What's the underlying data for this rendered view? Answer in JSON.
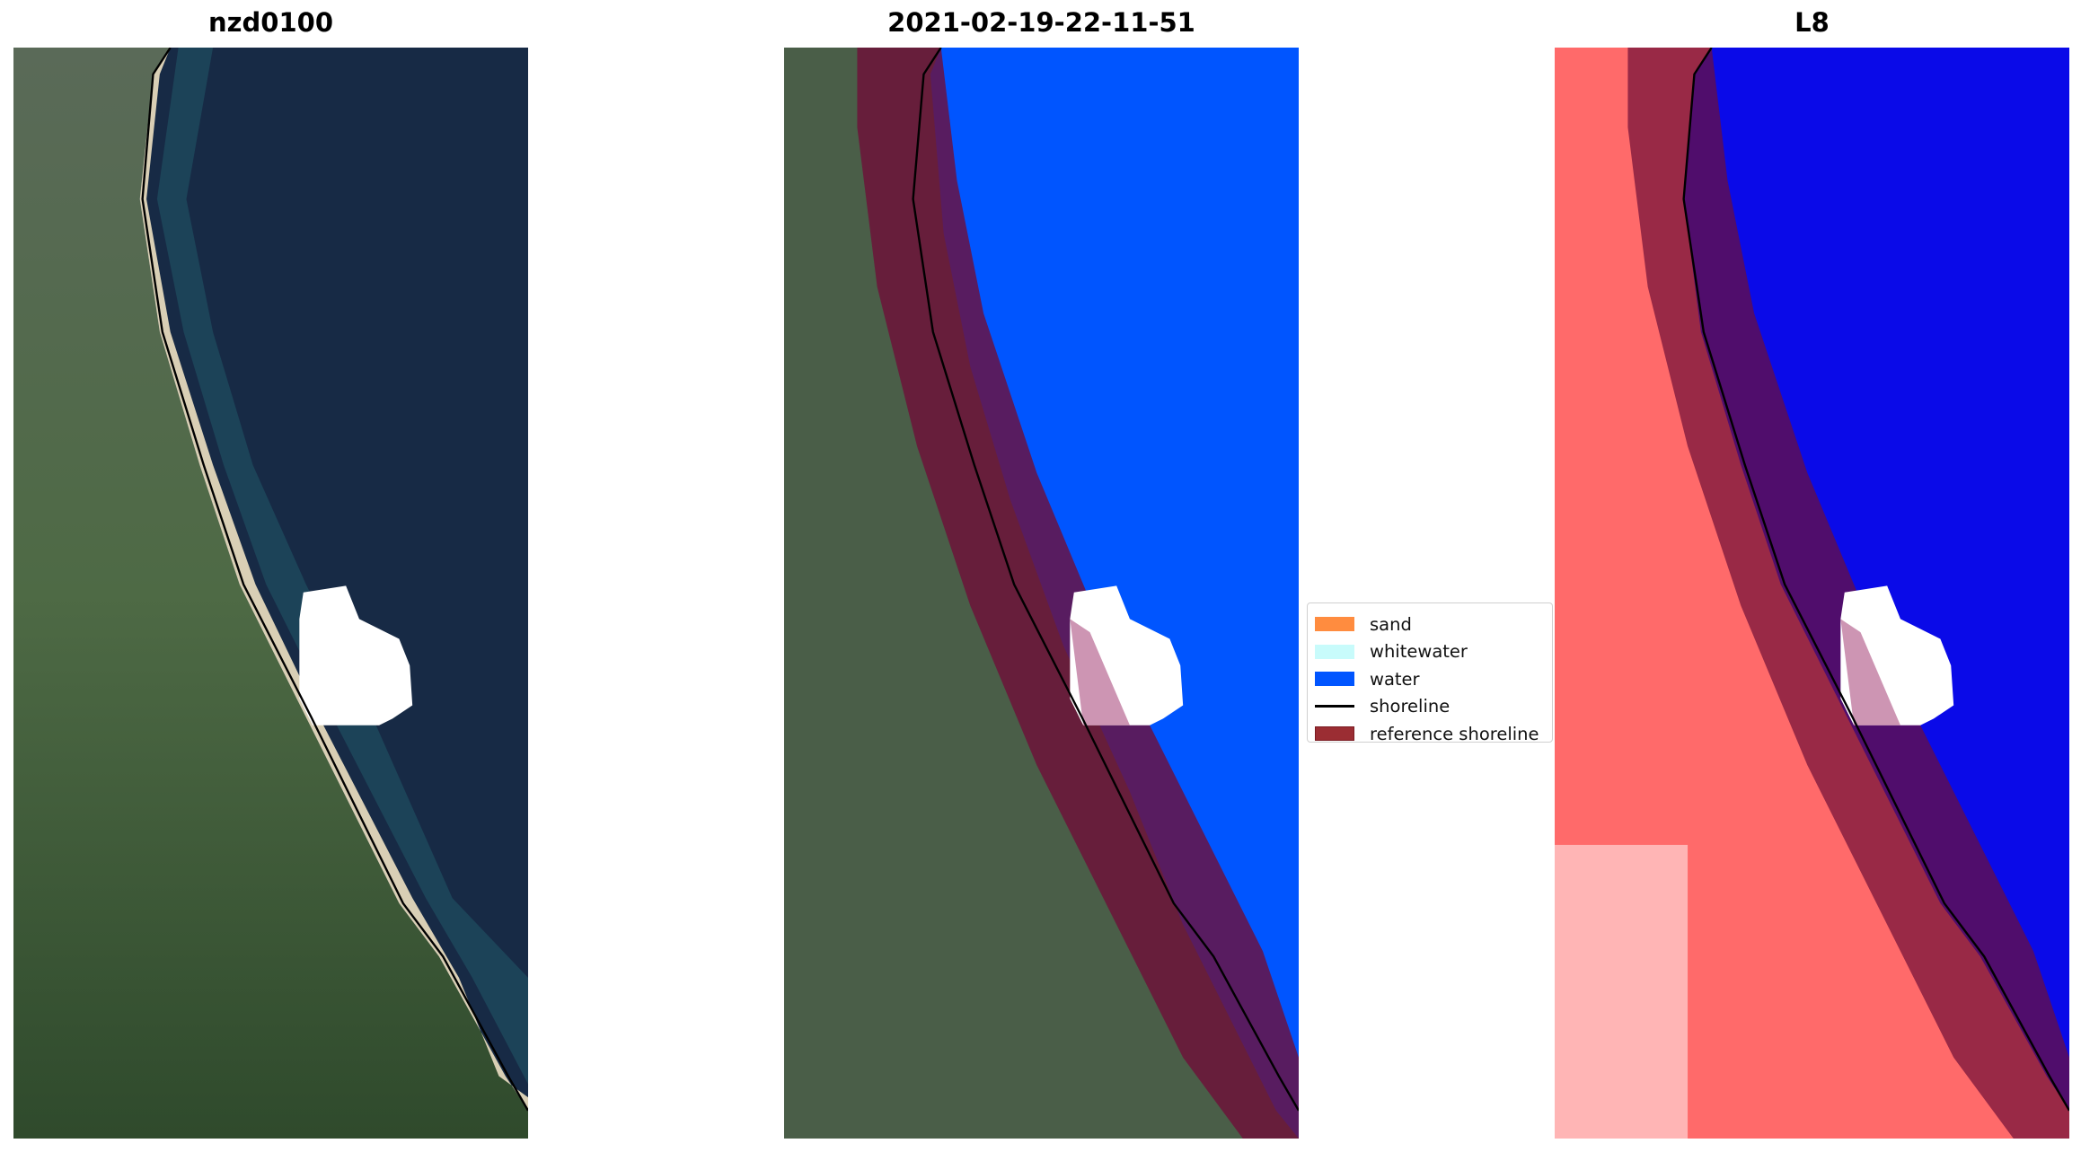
{
  "panels": [
    {
      "title": "nzd0100"
    },
    {
      "title": "2021-02-19-22-11-51"
    },
    {
      "title": "L8"
    }
  ],
  "legend": {
    "items": [
      {
        "label": "sand",
        "color": "#ff8c3f"
      },
      {
        "label": "whitewater",
        "color": "#c8fbfb"
      },
      {
        "label": "water",
        "color": "#0055ff"
      },
      {
        "label": "shoreline",
        "color": "#000000"
      },
      {
        "label": "reference shoreline",
        "color": "#9b2d33"
      }
    ]
  }
}
